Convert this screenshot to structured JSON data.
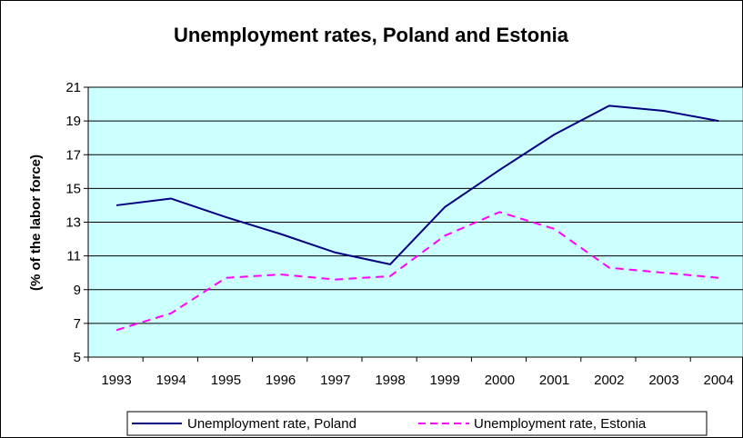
{
  "chart_data": {
    "type": "line",
    "title": "Unemployment rates, Poland and Estonia",
    "xlabel": "",
    "ylabel": "(% of the labor force)",
    "categories": [
      "1993",
      "1994",
      "1995",
      "1996",
      "1997",
      "1998",
      "1999",
      "2000",
      "2001",
      "2002",
      "2003",
      "2004"
    ],
    "series": [
      {
        "name": "Unemployment rate, Poland",
        "values": [
          14.0,
          14.4,
          13.3,
          12.3,
          11.2,
          10.5,
          13.9,
          16.1,
          18.2,
          19.9,
          19.6,
          19.0
        ],
        "color": "#000080",
        "style": "solid"
      },
      {
        "name": "Unemployment rate, Estonia",
        "values": [
          6.6,
          7.6,
          9.7,
          9.9,
          9.6,
          9.8,
          12.2,
          13.6,
          12.6,
          10.3,
          10.0,
          9.7
        ],
        "color": "#FF00FF",
        "style": "dashed"
      }
    ],
    "ylim": [
      5,
      21
    ],
    "yticks": [
      "5",
      "7",
      "9",
      "11",
      "13",
      "15",
      "17",
      "19",
      "21"
    ],
    "grid": true,
    "plot_background": "#CCFFFF",
    "legend_position": "bottom"
  }
}
